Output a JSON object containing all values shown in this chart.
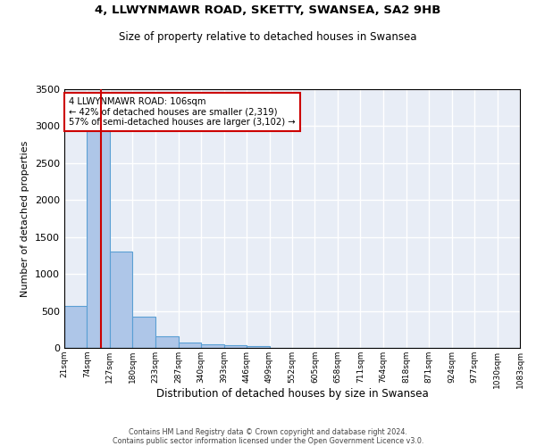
{
  "title1": "4, LLWYNMAWR ROAD, SKETTY, SWANSEA, SA2 9HB",
  "title2": "Size of property relative to detached houses in Swansea",
  "xlabel": "Distribution of detached houses by size in Swansea",
  "ylabel": "Number of detached properties",
  "footer1": "Contains HM Land Registry data © Crown copyright and database right 2024.",
  "footer2": "Contains public sector information licensed under the Open Government Licence v3.0.",
  "annotation_line1": "4 LLWYNMAWR ROAD: 106sqm",
  "annotation_line2": "← 42% of detached houses are smaller (2,319)",
  "annotation_line3": "57% of semi-detached houses are larger (3,102) →",
  "property_size": 106,
  "bin_edges": [
    21,
    74,
    127,
    180,
    233,
    287,
    340,
    393,
    446,
    499,
    552,
    605,
    658,
    711,
    764,
    818,
    871,
    924,
    977,
    1030,
    1083
  ],
  "bin_counts": [
    573,
    2975,
    1309,
    418,
    155,
    68,
    45,
    37,
    30,
    0,
    0,
    0,
    0,
    0,
    0,
    0,
    0,
    0,
    0,
    0
  ],
  "bar_color": "#aec6e8",
  "bar_edge_color": "#5a9fd4",
  "red_line_color": "#cc0000",
  "annotation_box_edge": "#cc0000",
  "background_color": "#e8edf6",
  "grid_color": "#ffffff",
  "ylim": [
    0,
    3500
  ],
  "tick_labels": [
    "21sqm",
    "74sqm",
    "127sqm",
    "180sqm",
    "233sqm",
    "287sqm",
    "340sqm",
    "393sqm",
    "446sqm",
    "499sqm",
    "552sqm",
    "605sqm",
    "658sqm",
    "711sqm",
    "764sqm",
    "818sqm",
    "871sqm",
    "924sqm",
    "977sqm",
    "1030sqm",
    "1083sqm"
  ]
}
